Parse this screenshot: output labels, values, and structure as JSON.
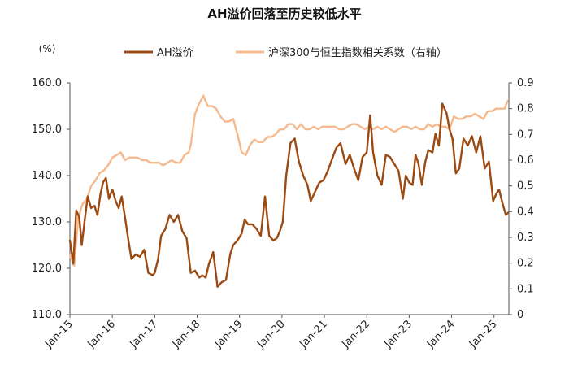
{
  "chart_data": {
    "type": "line",
    "title": "AH溢价回落至历史较低水平",
    "y_left_unit": "(%)",
    "y_left_ticks": [
      "160.0",
      "150.0",
      "140.0",
      "130.0",
      "120.0",
      "110.0"
    ],
    "y_left_range": [
      110,
      160
    ],
    "y_right_ticks": [
      "0.9",
      "0.8",
      "0.7",
      "0.6",
      "0.5",
      "0.4",
      "0.3",
      "0.2",
      "0.1",
      "0"
    ],
    "y_right_range": [
      0,
      0.9
    ],
    "x_ticks": [
      "Jan-15",
      "Jan-16",
      "Jan-17",
      "Jan-18",
      "Jan-19",
      "Jan-20",
      "Jan-21",
      "Jan-22",
      "Jan-23",
      "Jan-24",
      "Jan-25"
    ],
    "x_range": [
      2015.0,
      2025.35
    ],
    "legend_position": "top",
    "series": [
      {
        "name": "AH溢价",
        "axis": "left",
        "color": "#9b4a12",
        "x": [
          2015.0,
          2015.08,
          2015.15,
          2015.22,
          2015.28,
          2015.35,
          2015.42,
          2015.5,
          2015.58,
          2015.65,
          2015.72,
          2015.78,
          2015.85,
          2015.92,
          2016.0,
          2016.08,
          2016.15,
          2016.22,
          2016.3,
          2016.38,
          2016.45,
          2016.55,
          2016.65,
          2016.75,
          2016.85,
          2016.95,
          2017.0,
          2017.08,
          2017.15,
          2017.25,
          2017.35,
          2017.45,
          2017.55,
          2017.65,
          2017.75,
          2017.85,
          2017.95,
          2018.05,
          2018.12,
          2018.2,
          2018.28,
          2018.38,
          2018.48,
          2018.58,
          2018.68,
          2018.78,
          2018.85,
          2018.95,
          2019.05,
          2019.12,
          2019.2,
          2019.3,
          2019.4,
          2019.5,
          2019.6,
          2019.7,
          2019.8,
          2019.88,
          2019.95,
          2020.02,
          2020.1,
          2020.2,
          2020.3,
          2020.4,
          2020.5,
          2020.6,
          2020.68,
          2020.78,
          2020.88,
          2020.98,
          2021.08,
          2021.18,
          2021.28,
          2021.38,
          2021.5,
          2021.6,
          2021.7,
          2021.8,
          2021.9,
          2022.0,
          2022.08,
          2022.15,
          2022.25,
          2022.35,
          2022.45,
          2022.55,
          2022.65,
          2022.75,
          2022.85,
          2022.92,
          2023.0,
          2023.08,
          2023.15,
          2023.22,
          2023.3,
          2023.38,
          2023.45,
          2023.55,
          2023.62,
          2023.7,
          2023.78,
          2023.88,
          2023.95,
          2024.02,
          2024.1,
          2024.18,
          2024.28,
          2024.38,
          2024.48,
          2024.58,
          2024.68,
          2024.78,
          2024.88,
          2024.98,
          2025.05,
          2025.12,
          2025.2,
          2025.28,
          2025.33
        ],
        "values": [
          126.0,
          121.0,
          132.5,
          131.0,
          125.0,
          130.5,
          135.5,
          133.0,
          133.5,
          131.5,
          136.0,
          138.5,
          139.5,
          135.0,
          137.0,
          134.5,
          133.0,
          135.5,
          131.0,
          126.0,
          122.0,
          123.0,
          122.5,
          124.0,
          119.0,
          118.5,
          119.0,
          122.0,
          127.0,
          128.5,
          131.5,
          130.0,
          131.5,
          128.0,
          126.5,
          119.0,
          119.5,
          118.0,
          118.5,
          118.0,
          121.0,
          123.5,
          116.0,
          117.0,
          117.5,
          123.0,
          125.0,
          126.0,
          127.5,
          130.5,
          129.5,
          129.5,
          128.5,
          127.0,
          135.5,
          127.0,
          126.0,
          126.5,
          128.0,
          130.0,
          140.0,
          147.0,
          148.0,
          143.0,
          140.0,
          138.0,
          134.5,
          136.5,
          138.5,
          139.0,
          141.0,
          143.5,
          146.0,
          147.0,
          142.5,
          144.5,
          141.5,
          139.0,
          144.0,
          145.0,
          153.0,
          145.0,
          140.0,
          138.0,
          144.5,
          144.0,
          142.5,
          141.0,
          135.0,
          140.0,
          138.5,
          138.0,
          144.5,
          142.5,
          138.0,
          143.0,
          145.5,
          145.0,
          149.0,
          146.5,
          155.5,
          153.5,
          150.0,
          148.0,
          140.5,
          141.5,
          148.0,
          146.5,
          148.5,
          145.0,
          148.5,
          141.5,
          143.0,
          134.5,
          136.0,
          137.0,
          134.0,
          131.5,
          132.0
        ]
      },
      {
        "name": "沪深300与恒生指数相关系数（右轴）",
        "axis": "right",
        "color": "#f5b98d",
        "x": [
          2015.0,
          2015.1,
          2015.2,
          2015.3,
          2015.4,
          2015.5,
          2015.6,
          2015.7,
          2015.8,
          2015.9,
          2016.0,
          2016.1,
          2016.2,
          2016.3,
          2016.4,
          2016.5,
          2016.6,
          2016.7,
          2016.8,
          2016.9,
          2017.0,
          2017.1,
          2017.2,
          2017.3,
          2017.4,
          2017.5,
          2017.6,
          2017.7,
          2017.8,
          2017.85,
          2017.95,
          2018.05,
          2018.15,
          2018.25,
          2018.35,
          2018.45,
          2018.55,
          2018.65,
          2018.75,
          2018.85,
          2018.95,
          2019.05,
          2019.15,
          2019.25,
          2019.35,
          2019.45,
          2019.55,
          2019.65,
          2019.75,
          2019.85,
          2019.95,
          2020.05,
          2020.15,
          2020.25,
          2020.35,
          2020.45,
          2020.55,
          2020.65,
          2020.75,
          2020.85,
          2020.95,
          2021.05,
          2021.15,
          2021.25,
          2021.35,
          2021.45,
          2021.55,
          2021.65,
          2021.75,
          2021.85,
          2021.95,
          2022.05,
          2022.15,
          2022.25,
          2022.35,
          2022.45,
          2022.55,
          2022.65,
          2022.75,
          2022.85,
          2022.95,
          2023.05,
          2023.15,
          2023.25,
          2023.35,
          2023.45,
          2023.55,
          2023.65,
          2023.75,
          2023.85,
          2023.95,
          2024.05,
          2024.15,
          2024.25,
          2024.35,
          2024.45,
          2024.55,
          2024.65,
          2024.75,
          2024.85,
          2024.95,
          2025.05,
          2025.15,
          2025.25,
          2025.32
        ],
        "values": [
          0.23,
          0.19,
          0.38,
          0.43,
          0.45,
          0.5,
          0.52,
          0.55,
          0.56,
          0.58,
          0.61,
          0.62,
          0.63,
          0.6,
          0.61,
          0.61,
          0.61,
          0.6,
          0.6,
          0.59,
          0.59,
          0.59,
          0.58,
          0.59,
          0.6,
          0.59,
          0.59,
          0.62,
          0.63,
          0.66,
          0.78,
          0.82,
          0.85,
          0.81,
          0.81,
          0.8,
          0.77,
          0.75,
          0.75,
          0.76,
          0.7,
          0.63,
          0.62,
          0.66,
          0.68,
          0.67,
          0.67,
          0.69,
          0.69,
          0.7,
          0.72,
          0.72,
          0.74,
          0.74,
          0.72,
          0.74,
          0.72,
          0.72,
          0.73,
          0.72,
          0.73,
          0.73,
          0.73,
          0.73,
          0.72,
          0.72,
          0.73,
          0.74,
          0.74,
          0.73,
          0.72,
          0.73,
          0.72,
          0.73,
          0.72,
          0.73,
          0.72,
          0.71,
          0.72,
          0.73,
          0.73,
          0.72,
          0.73,
          0.72,
          0.72,
          0.74,
          0.73,
          0.74,
          0.73,
          0.73,
          0.72,
          0.77,
          0.76,
          0.76,
          0.77,
          0.77,
          0.78,
          0.77,
          0.76,
          0.79,
          0.79,
          0.8,
          0.8,
          0.8,
          0.83
        ]
      }
    ],
    "grid": false
  }
}
